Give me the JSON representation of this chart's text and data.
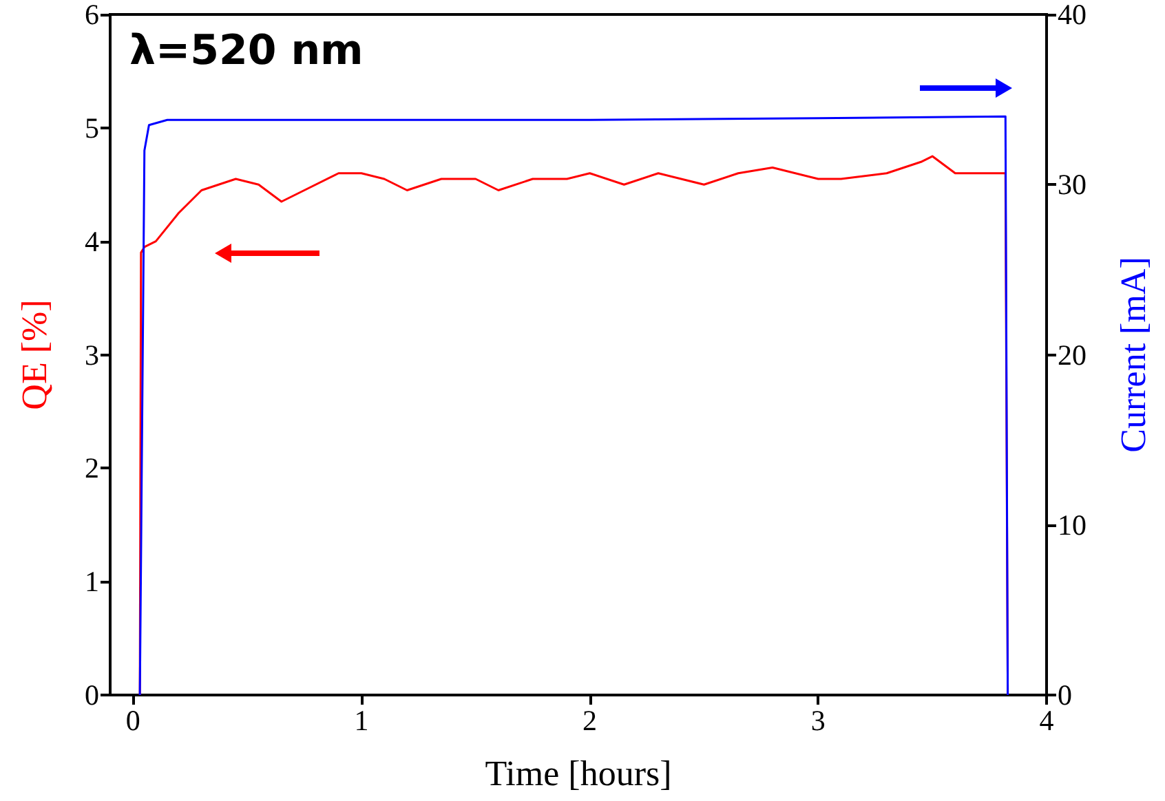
{
  "chart_data": {
    "type": "line",
    "xlabel": "Time [hours]",
    "ylabel": "QE [%]",
    "y2label": "Current [mA]",
    "annotations": [
      "λ=520 nm"
    ],
    "xlim": [
      -0.1,
      4
    ],
    "xticks": [
      0,
      1,
      2,
      3,
      4
    ],
    "ylim": [
      0,
      6
    ],
    "yticks": [
      0,
      1,
      2,
      3,
      4,
      5,
      6
    ],
    "y2lim": [
      0,
      40
    ],
    "y2ticks": [
      0,
      10,
      20,
      30,
      40
    ],
    "grid": false,
    "marker": "none",
    "line_style": "solid",
    "series": [
      {
        "color": "#ff0000",
        "x": [
          0.03,
          0.035,
          0.05,
          0.1,
          0.2,
          0.3,
          0.45,
          0.55,
          0.65,
          0.75,
          0.9,
          1.0,
          1.1,
          1.2,
          1.35,
          1.5,
          1.6,
          1.75,
          1.9,
          2.0,
          2.15,
          2.3,
          2.5,
          2.65,
          2.8,
          3.0,
          3.1,
          3.3,
          3.45,
          3.5,
          3.6,
          3.7,
          3.82,
          3.83
        ],
        "values": [
          0,
          3.9,
          3.95,
          4.0,
          4.25,
          4.45,
          4.55,
          4.5,
          4.35,
          4.45,
          4.6,
          4.6,
          4.55,
          4.45,
          4.55,
          4.55,
          4.45,
          4.55,
          4.55,
          4.6,
          4.5,
          4.6,
          4.5,
          4.6,
          4.65,
          4.55,
          4.55,
          4.6,
          4.7,
          4.75,
          4.6,
          4.6,
          4.6,
          0
        ]
      },
      {
        "color": "#0000ff",
        "axis": "y2",
        "x": [
          0.03,
          0.05,
          0.07,
          0.15,
          1.0,
          2.0,
          3.0,
          3.82,
          3.83
        ],
        "values": [
          0,
          32,
          33.5,
          33.8,
          33.8,
          33.8,
          33.9,
          34,
          0
        ]
      }
    ]
  }
}
